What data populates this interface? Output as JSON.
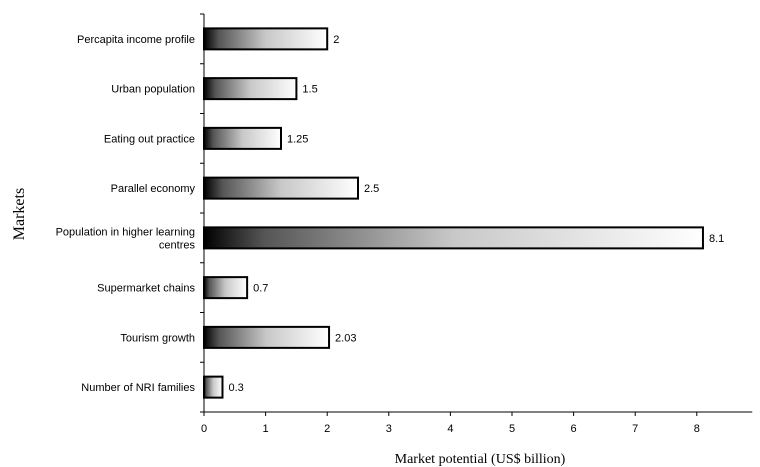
{
  "chart_data": {
    "type": "bar",
    "orientation": "horizontal",
    "xlabel": "Market potential (US$ billion)",
    "ylabel": "Markets",
    "xlim": [
      0,
      8.9
    ],
    "xticks": [
      "0",
      "1",
      "2",
      "3",
      "4",
      "5",
      "6",
      "7",
      "8"
    ],
    "grid": false,
    "categories": [
      [
        "Percapita income profile"
      ],
      [
        "Urban population"
      ],
      [
        "Eating out practice"
      ],
      [
        "Parallel economy"
      ],
      [
        "Population in higher learning",
        "centres"
      ],
      [
        "Supermarket chains"
      ],
      [
        "Tourism growth"
      ],
      [
        "Number of NRI families"
      ]
    ],
    "values": [
      2,
      1.5,
      1.25,
      2.5,
      8.1,
      0.7,
      2.03,
      0.3
    ],
    "value_labels": [
      "2",
      "1.5",
      "1.25",
      "2.5",
      "8.1",
      "0.7",
      "2.03",
      "0.3"
    ],
    "bar_fill": "gradient dark-to-white",
    "bar_stroke": "#000000"
  }
}
